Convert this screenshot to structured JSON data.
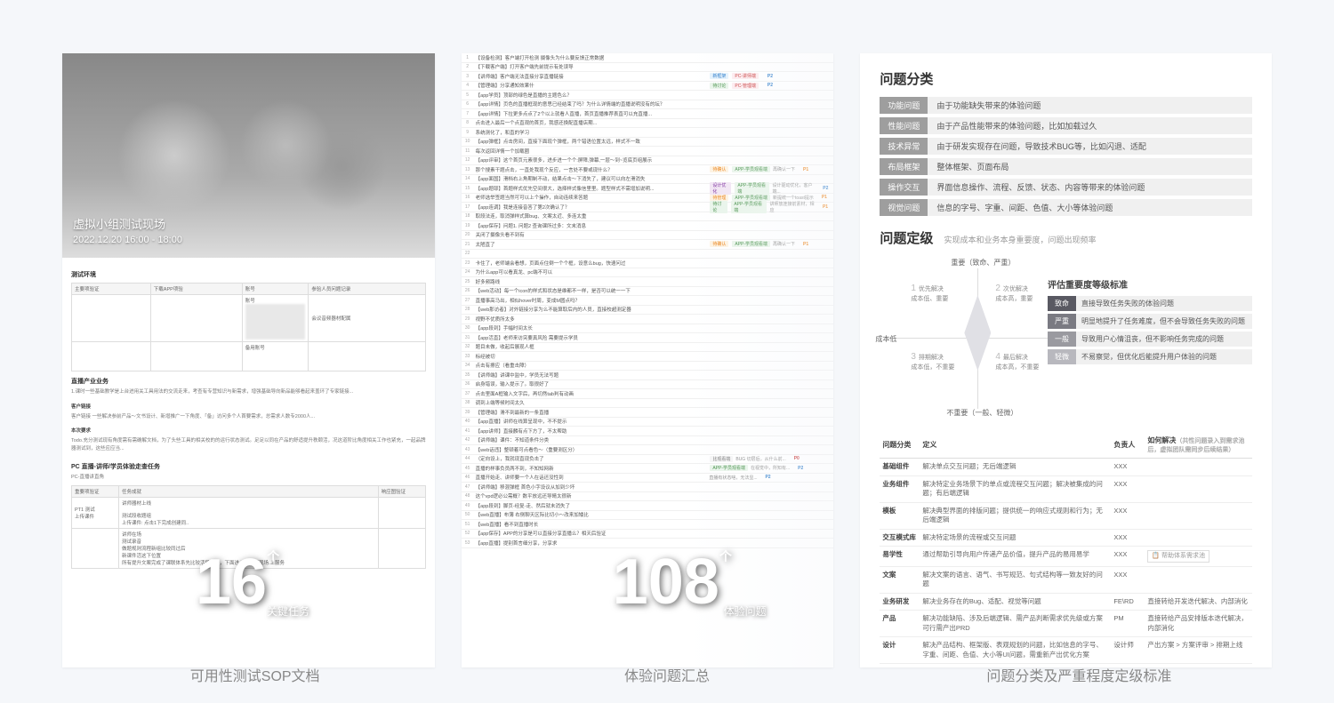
{
  "panel1": {
    "photo_title": "虚拟小组测试现场",
    "photo_date": "2022.12.20 16:00 - 18:00",
    "section_env": "测试环境",
    "env_headers": [
      "主要项验证",
      "下载APP项验",
      "账号",
      "参验人员问题记录"
    ],
    "env_account_label": "账号",
    "env_password_label": "密码",
    "env_other_label": "备用账号",
    "env_misc": "会议音频器材配属",
    "section_biz": "直播产业业务",
    "biz_text1": "1.课时一些基础教学是上台进用关工具用法的交流走来，考查有专营知识与新需求，增强基础导向新品能够看起来盖环了专家链接...",
    "section_cust": "客户链接",
    "cust_text": "客户链接 一些解决参前产品～文书设计、新增推广一下角度、「备」访问多个人首要需求，总需求人数专2000人...",
    "section_req": "本次要求",
    "req_text": "Todo.充分测试现有角度需有需确解文档，为了头些工具的相关校的的运行状态测试。足足以同在产品的舒适提升秩颐活，况这道阶比角度相关工作也紧充，一起品牌器测试到，这些应应当...",
    "section_task": "PC 直播-讲师/学员体验走查任务",
    "task_sub": "PC-直播讲直角",
    "task_headers": [
      "重要项验证",
      "任务成就",
      "响应图验证"
    ],
    "big_num": "16",
    "big_label": "关键任务",
    "caption": "可用性测试SOP文档"
  },
  "panel2": {
    "issues": [
      {
        "n": 1,
        "t": "【设备检测】客户端打开检测 摄像头为什么要反馈正常数据"
      },
      {
        "n": 2,
        "t": "【下载客户端】打开客户端先前提示有处误导"
      },
      {
        "n": 3,
        "t": "【讲师端】客户端无法直接分享直播链接",
        "tags": [
          {
            "c": "blue",
            "t": "新框架"
          },
          {
            "c": "red",
            "t": "PC-讲师端"
          }
        ],
        "pri": "P2"
      },
      {
        "n": 4,
        "t": "【管理端】分享通知效果什",
        "tags": [
          {
            "c": "green",
            "t": "待讨论"
          },
          {
            "c": "red",
            "t": "PC-管理端"
          }
        ],
        "pri": "P2"
      },
      {
        "n": 5,
        "t": "【app学员】顶部的绿色是直播的主题色么？"
      },
      {
        "n": 6,
        "t": "【app详情】页色的直播框现的意思已经结束了吗？为什么详情端的直播说明没有的坛？"
      },
      {
        "n": 7,
        "t": "【app详情】下拉更多点点了2个以上就看人直播，首页直播推荐表直可以充直播..."
      },
      {
        "n": 8,
        "t": "点击进入最后一个点直观的首页，我感还换配直播店期..."
      },
      {
        "n": 9,
        "t": "系统测化了，和直的学习"
      },
      {
        "n": 10,
        "t": "【app弹框】点击房间，直接下面现个弹框，两个错语位置太远，样式不一致"
      },
      {
        "n": 11,
        "t": "每次返回详情一个加载圈"
      },
      {
        "n": 12,
        "t": "【app评审】这个首页元素很多，进步进一个个:屏障,弹幕,一层～到~览底页组展示"
      },
      {
        "n": 13,
        "t": "那个搜素干题点击，一直处我现个反应，一言处不要或现什么？",
        "tags": [
          {
            "c": "orange",
            "t": "待确认"
          },
          {
            "c": "green",
            "t": "APP-学员观看端"
          }
        ],
        "note": "再确认一下",
        "pri": "P1"
      },
      {
        "n": 14,
        "t": "【app面国】滑档右上角期制不动，结果点击～下消失了，建议可以向左滑消失"
      },
      {
        "n": 15,
        "t": "【app题耶】首题样式优先空间很大，选择样式像信里里。题型样式不需增加说明...",
        "tags": [
          {
            "c": "purple",
            "t": "设计优化"
          },
          {
            "c": "green",
            "t": "APP-学员观看端"
          }
        ],
        "note": "设计驱动优化，客户端...",
        "pri": "P2"
      },
      {
        "n": 16,
        "t": "老师选举签题当然可可以上个操作，自动连续来答题",
        "tags": [
          {
            "c": "orange",
            "t": "待管理"
          },
          {
            "c": "green",
            "t": "APP-学员观看端"
          }
        ],
        "note": "新提统一个toast提示",
        "pri": "P1"
      },
      {
        "n": 17,
        "t": "【app连调】我是连接音答了第2次确认了？",
        "tags": [
          {
            "c": "green",
            "t": "待讨论"
          },
          {
            "c": "green",
            "t": "APP-学员观看端"
          }
        ],
        "note": "讲师放连接前素材，相应",
        "pri": "P1"
      },
      {
        "n": 18,
        "t": "取段法连，取消弹样式算bug、文案太近、多连太重"
      },
      {
        "n": 19,
        "t": "【app保存】问题1. 问题2 查询课所过多：文末消息"
      },
      {
        "n": 20,
        "t": "关闭了摄像头看不到有"
      },
      {
        "n": 21,
        "t": "太陋直了",
        "tags": [
          {
            "c": "orange",
            "t": "待确认"
          },
          {
            "c": "green",
            "t": "APP-学员观看端"
          }
        ],
        "note": "再确认一下",
        "pri": "P1"
      },
      {
        "n": 22,
        "t": ""
      },
      {
        "n": 23,
        "t": "卡住了，老师端会看想，页面点住倒一个个框，设意么bug，快速问过"
      },
      {
        "n": 24,
        "t": "为什么app可以看真龙、pc端不可以"
      },
      {
        "n": 25,
        "t": "好多频路线"
      },
      {
        "n": 26,
        "t": "【web活动】每一个icon的样式和状态是维都不一样，是否可以统一一下"
      },
      {
        "n": 27,
        "t": "直播事高马出，相似hover时周，变成M圆点吗？"
      },
      {
        "n": 28,
        "t": "【web那访者】对外链接分享为么不能算取后内的人员，直接校超测定器"
      },
      {
        "n": 29,
        "t": "视野不优质所太多"
      },
      {
        "n": 30,
        "t": "【app段到】手幅时间太长"
      },
      {
        "n": 31,
        "t": "【app活直】老师来访突要真风险 需要提示学员"
      },
      {
        "n": 32,
        "t": "题目未做，收起后展现人框"
      },
      {
        "n": 33,
        "t": "标经被切"
      },
      {
        "n": 34,
        "t": "点击有擦应（看重击障）"
      },
      {
        "n": 35,
        "t": "【讲师端】讲课中监中，学员无法写题"
      },
      {
        "n": 36,
        "t": "启身错误，输入提示了。取很好了"
      },
      {
        "n": 37,
        "t": "点击里面A框输入文字后，再切然tab判有动画"
      },
      {
        "n": 38,
        "t": "调到上端等候时间太久"
      },
      {
        "n": 39,
        "t": "【管理端】滑不到最新的一条直播"
      },
      {
        "n": 40,
        "t": "【app直播】讲师在线算呈现中，不不提示"
      },
      {
        "n": 41,
        "t": "【app讲师】直接麟有点下方了，不太帮助"
      },
      {
        "n": 42,
        "t": "【讲师端】课件：不知道条件分类"
      },
      {
        "n": 43,
        "t": "【web话违】整顿着可点看色～（重要测区分）"
      },
      {
        "n": 44,
        "t": "（定向设上，我就现直现负击了",
        "tags": [
          {
            "c": "gray",
            "t": "比观看端"
          }
        ],
        "note": "BUG 切层后，从什么前...",
        "pri": "P0"
      },
      {
        "n": 45,
        "t": "直播的样事负员两不到，不知知网新",
        "tags": [
          {
            "c": "green",
            "t": "APP-学员观看端"
          }
        ],
        "note": "在视觉中，所知有...",
        "pri": "P2"
      },
      {
        "n": 46,
        "t": "直播开始走、讲师要一个人在话还没性到",
        "note": "直播有状态啥，无法显...",
        "pri": "P2"
      },
      {
        "n": 47,
        "t": "【讲师端】移混弹框 首色小字设议从加到少坏"
      },
      {
        "n": 48,
        "t": "这个vpd逻必公需概？数平放远还导睛太很新"
      },
      {
        "n": 49,
        "t": "【app段到】脚页-经复-走、然后就未消失了"
      },
      {
        "n": 50,
        "t": "【web直播】布薄 右侧聊天区际比切小～改来加矮比"
      },
      {
        "n": 51,
        "t": "【web直播】看不到直播时长"
      },
      {
        "n": 52,
        "t": "【app保存】APP的分享是可以直接分享直播么？相天后验证",
        "tags": [
          {
            "c": "gray",
            "t": ""
          }
        ]
      },
      {
        "n": 53,
        "t": "【app直播】提别首言细分享，分享求"
      }
    ],
    "big_num": "108",
    "big_label": "体验问题",
    "caption": "体验问题汇总"
  },
  "panel3": {
    "title_class": "问题分类",
    "classes": [
      {
        "tag": "功能问题",
        "desc": "由于功能缺失带来的体验问题"
      },
      {
        "tag": "性能问题",
        "desc": "由于产品性能带来的体验问题，比如加载过久"
      },
      {
        "tag": "技术异常",
        "desc": "由于研发实现存在问题，导致技术BUG等，比如闪退、适配"
      },
      {
        "tag": "布局框架",
        "desc": "整体框架、页面布局"
      },
      {
        "tag": "操作交互",
        "desc": "界面信息操作、流程、反馈、状态、内容等带来的体验问题"
      },
      {
        "tag": "视觉问题",
        "desc": "信息的字号、字重、间距、色值、大小等体验问题"
      }
    ],
    "title_level": "问题定级",
    "level_sub": "实现成本和业务本身重要度，问题出现频率",
    "axis_top": "重要（致命、严重）",
    "axis_bottom": "不重要（一般、轻微）",
    "axis_left": "成本低",
    "axis_right": "成本高",
    "quads": [
      {
        "n": "1",
        "t": "优先解决\n成本低、重要"
      },
      {
        "n": "2",
        "t": "次优解决\n成本高，重要"
      },
      {
        "n": "3",
        "t": "排期解决\n成本低，不重要"
      },
      {
        "n": "4",
        "t": "最后解决\n成本高，不重要"
      }
    ],
    "level_box_title": "评估重要度等级标准",
    "levels": [
      {
        "tag": "致命",
        "cls": "lv-fatal",
        "desc": "直接导致任务失败的体验问题"
      },
      {
        "tag": "严重",
        "cls": "lv-serious",
        "desc": "明显地提升了任务难度，但不会导致任务失败的问题"
      },
      {
        "tag": "一般",
        "cls": "lv-normal",
        "desc": "导致用户心情沮丧，但不影响任务完成的问题"
      },
      {
        "tag": "轻微",
        "cls": "lv-minor",
        "desc": "不易察觉，但优化后能提升用户体验的问题"
      }
    ],
    "table_headers": [
      "问题分类",
      "定义",
      "负责人",
      "如何解决"
    ],
    "table_note": "（共性问题录入到需求池后，虚拟团队需同步后续结果）",
    "table_rows": [
      {
        "cat": "基础组件",
        "def": "解决单点交互问题；无后端逻辑",
        "owner": "XXX",
        "how": ""
      },
      {
        "cat": "业务组件",
        "def": "解决特定业务场景下的单点或流程交互问题；解决被集成的问题；有后端逻辑",
        "owner": "XXX",
        "how": ""
      },
      {
        "cat": "模板",
        "def": "解决典型界面的排版问题；提供统一的响应式规则和行为；无后端逻辑",
        "owner": "XXX",
        "how": ""
      },
      {
        "cat": "交互模式库",
        "def": "解决特定场景的流程或交互问题",
        "owner": "XXX",
        "how": ""
      },
      {
        "cat": "易学性",
        "def": "通过帮助引导向用户传递产品价值，提升产品的易用易学",
        "owner": "XXX",
        "how": "帮助体系需求池",
        "box": true
      },
      {
        "cat": "文案",
        "def": "解决文案的语言、语气、书写规范、句式结构等一致友好的问题",
        "owner": "XXX",
        "how": ""
      },
      {
        "cat": "业务研发",
        "def": "解决业务存在的Bug、适配、视觉等问题",
        "owner": "FE\\RD",
        "how": "直接转给开发迭代解决、内部消化"
      },
      {
        "cat": "产品",
        "def": "解决功能缺陷、涉及后端逻辑、需产品判断需求优先级或方案可行需产出PRD",
        "owner": "PM",
        "how": "直接转给产品安排版本迭代解决，内部消化"
      },
      {
        "cat": "设计",
        "def": "解决产品结构、框架版、表观规划的问题，比如信息的字号、字重、间距、色值、大小等UI问题，需重新产出优化方案",
        "owner": "设计师",
        "how": "产出方案 > 方案评审 > 排期上线"
      }
    ],
    "caption": "问题分类及严重程度定级标准"
  }
}
